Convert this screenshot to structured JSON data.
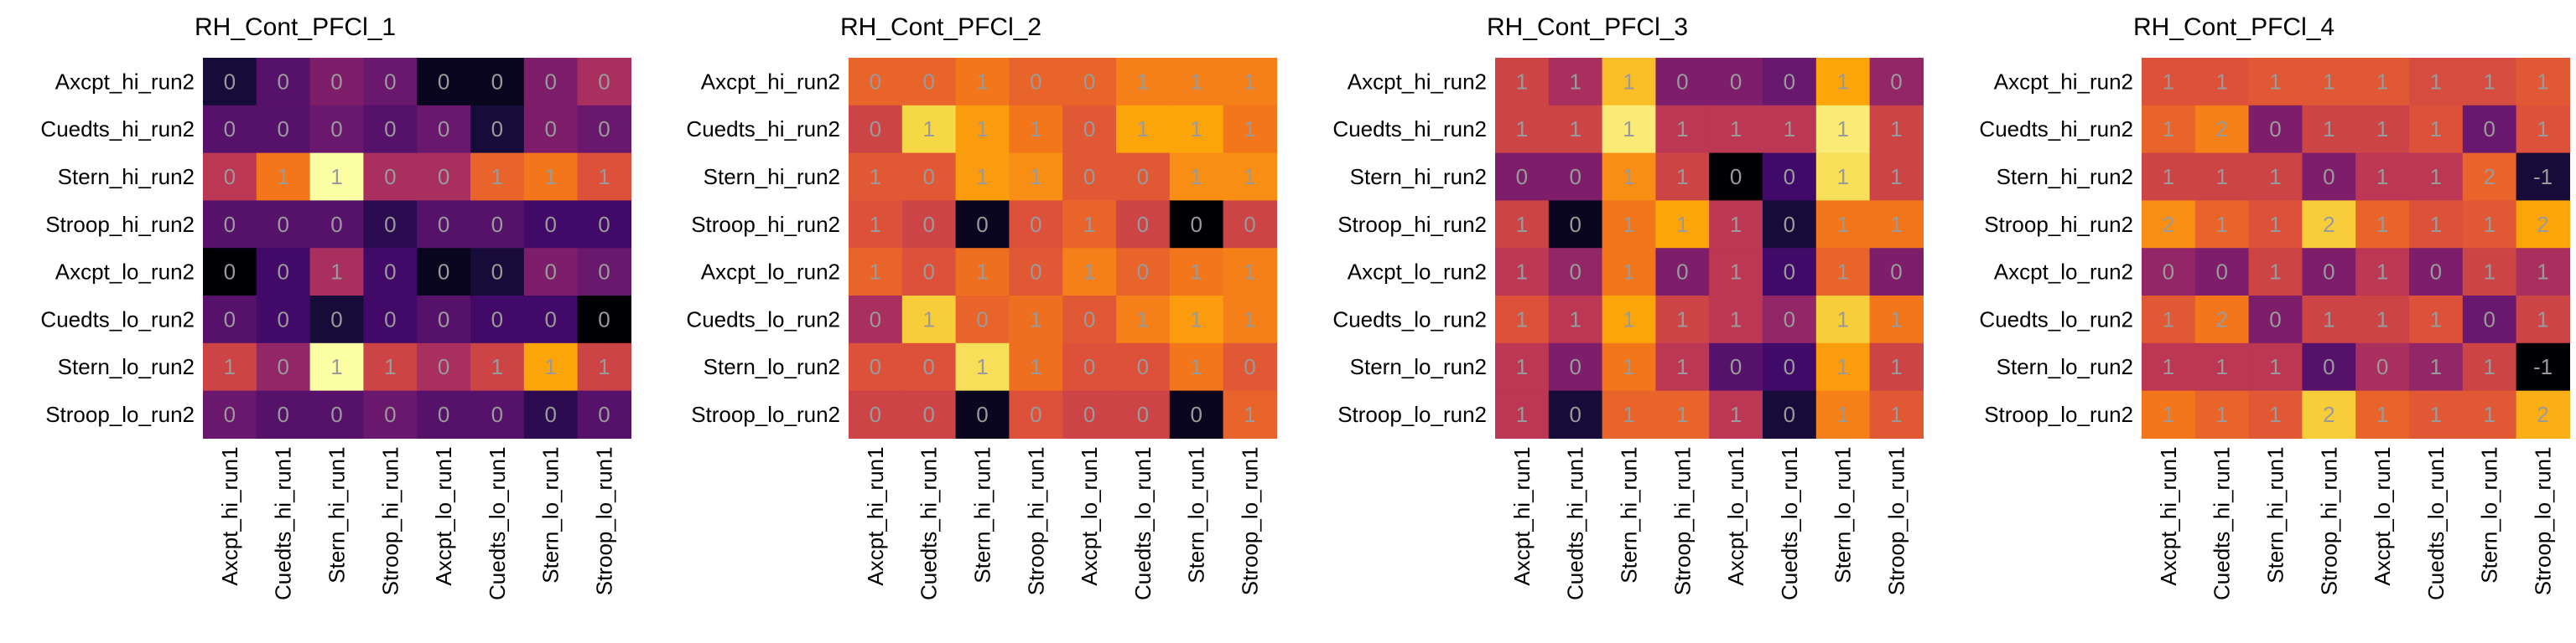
{
  "chart_data": [
    {
      "type": "heatmap",
      "title": "RH_Cont_PFCl_1",
      "rows": [
        "Axcpt_hi_run2",
        "Cuedts_hi_run2",
        "Stern_hi_run2",
        "Stroop_hi_run2",
        "Axcpt_lo_run2",
        "Cuedts_lo_run2",
        "Stern_lo_run2",
        "Stroop_lo_run2"
      ],
      "cols": [
        "Axcpt_hi_run1",
        "Cuedts_hi_run1",
        "Stern_hi_run1",
        "Stroop_hi_run1",
        "Axcpt_lo_run1",
        "Cuedts_lo_run1",
        "Stern_lo_run1",
        "Stroop_lo_run1"
      ],
      "values": [
        [
          0.1,
          0.25,
          0.35,
          0.3,
          0.05,
          0.05,
          0.35,
          0.45
        ],
        [
          0.25,
          0.25,
          0.3,
          0.25,
          0.3,
          0.1,
          0.35,
          0.3
        ],
        [
          0.5,
          0.7,
          1.0,
          0.45,
          0.45,
          0.65,
          0.7,
          0.6
        ],
        [
          0.25,
          0.25,
          0.25,
          0.15,
          0.25,
          0.25,
          0.2,
          0.2
        ],
        [
          0.0,
          0.2,
          0.45,
          0.2,
          0.05,
          0.1,
          0.35,
          0.3
        ],
        [
          0.25,
          0.2,
          0.1,
          0.2,
          0.25,
          0.2,
          0.2,
          0.0
        ],
        [
          0.55,
          0.4,
          1.0,
          0.55,
          0.45,
          0.55,
          0.8,
          0.55
        ],
        [
          0.3,
          0.25,
          0.25,
          0.3,
          0.25,
          0.25,
          0.15,
          0.25
        ]
      ],
      "labels": [
        [
          "0",
          "0",
          "0",
          "0",
          "0",
          "0",
          "0",
          "0"
        ],
        [
          "0",
          "0",
          "0",
          "0",
          "0",
          "0",
          "0",
          "0"
        ],
        [
          "0",
          "1",
          "1",
          "0",
          "0",
          "1",
          "1",
          "1"
        ],
        [
          "0",
          "0",
          "0",
          "0",
          "0",
          "0",
          "0",
          "0"
        ],
        [
          "0",
          "0",
          "1",
          "0",
          "0",
          "0",
          "0",
          "0"
        ],
        [
          "0",
          "0",
          "0",
          "0",
          "0",
          "0",
          "0",
          "0"
        ],
        [
          "1",
          "0",
          "1",
          "1",
          "0",
          "1",
          "1",
          "1"
        ],
        [
          "0",
          "0",
          "0",
          "0",
          "0",
          "0",
          "0",
          "0"
        ]
      ]
    },
    {
      "type": "heatmap",
      "title": "RH_Cont_PFCl_2",
      "rows": [
        "Axcpt_hi_run2",
        "Cuedts_hi_run2",
        "Stern_hi_run2",
        "Stroop_hi_run2",
        "Axcpt_lo_run2",
        "Cuedts_lo_run2",
        "Stern_lo_run2",
        "Stroop_lo_run2"
      ],
      "cols": [
        "Axcpt_hi_run1",
        "Cuedts_hi_run1",
        "Stern_hi_run1",
        "Stroop_hi_run1",
        "Axcpt_lo_run1",
        "Cuedts_lo_run1",
        "Stern_lo_run1",
        "Stroop_lo_run1"
      ],
      "values": [
        [
          0.65,
          0.65,
          0.7,
          0.65,
          0.65,
          0.72,
          0.72,
          0.72
        ],
        [
          0.55,
          0.9,
          0.78,
          0.7,
          0.62,
          0.8,
          0.8,
          0.7
        ],
        [
          0.62,
          0.62,
          0.78,
          0.75,
          0.62,
          0.62,
          0.75,
          0.75
        ],
        [
          0.6,
          0.55,
          0.05,
          0.6,
          0.65,
          0.55,
          0.0,
          0.55
        ],
        [
          0.65,
          0.6,
          0.68,
          0.62,
          0.72,
          0.65,
          0.7,
          0.72
        ],
        [
          0.45,
          0.88,
          0.65,
          0.68,
          0.62,
          0.72,
          0.78,
          0.72
        ],
        [
          0.6,
          0.6,
          0.92,
          0.68,
          0.6,
          0.6,
          0.7,
          0.62
        ],
        [
          0.55,
          0.55,
          0.05,
          0.6,
          0.55,
          0.55,
          0.05,
          0.65
        ]
      ],
      "labels": [
        [
          "0",
          "0",
          "1",
          "0",
          "0",
          "1",
          "1",
          "1"
        ],
        [
          "0",
          "1",
          "1",
          "1",
          "0",
          "1",
          "1",
          "1"
        ],
        [
          "1",
          "0",
          "1",
          "1",
          "0",
          "0",
          "1",
          "1"
        ],
        [
          "1",
          "0",
          "0",
          "0",
          "1",
          "0",
          "0",
          "0"
        ],
        [
          "1",
          "0",
          "1",
          "0",
          "1",
          "0",
          "1",
          "1"
        ],
        [
          "0",
          "1",
          "0",
          "1",
          "0",
          "1",
          "1",
          "1"
        ],
        [
          "0",
          "0",
          "1",
          "1",
          "0",
          "0",
          "1",
          "0"
        ],
        [
          "0",
          "0",
          "0",
          "0",
          "0",
          "0",
          "0",
          "1"
        ]
      ]
    },
    {
      "type": "heatmap",
      "title": "RH_Cont_PFCl_3",
      "rows": [
        "Axcpt_hi_run2",
        "Cuedts_hi_run2",
        "Stern_hi_run2",
        "Stroop_hi_run2",
        "Axcpt_lo_run2",
        "Cuedts_lo_run2",
        "Stern_lo_run2",
        "Stroop_lo_run2"
      ],
      "cols": [
        "Axcpt_hi_run1",
        "Cuedts_hi_run1",
        "Stern_hi_run1",
        "Stroop_hi_run1",
        "Axcpt_lo_run1",
        "Cuedts_lo_run1",
        "Stern_lo_run1",
        "Stroop_lo_run1"
      ],
      "values": [
        [
          0.55,
          0.45,
          0.85,
          0.35,
          0.35,
          0.3,
          0.8,
          0.4
        ],
        [
          0.55,
          0.55,
          0.95,
          0.5,
          0.5,
          0.5,
          0.95,
          0.55
        ],
        [
          0.35,
          0.35,
          0.75,
          0.55,
          0.0,
          0.2,
          0.92,
          0.55
        ],
        [
          0.55,
          0.05,
          0.7,
          0.8,
          0.5,
          0.1,
          0.7,
          0.7
        ],
        [
          0.5,
          0.4,
          0.7,
          0.35,
          0.5,
          0.2,
          0.65,
          0.35
        ],
        [
          0.6,
          0.5,
          0.8,
          0.55,
          0.5,
          0.4,
          0.88,
          0.7
        ],
        [
          0.5,
          0.35,
          0.7,
          0.5,
          0.25,
          0.2,
          0.78,
          0.55
        ],
        [
          0.5,
          0.1,
          0.65,
          0.65,
          0.5,
          0.1,
          0.72,
          0.62
        ]
      ],
      "labels": [
        [
          "1",
          "1",
          "1",
          "0",
          "0",
          "0",
          "1",
          "0"
        ],
        [
          "1",
          "1",
          "1",
          "1",
          "1",
          "1",
          "1",
          "1"
        ],
        [
          "0",
          "0",
          "1",
          "1",
          "0",
          "0",
          "1",
          "1"
        ],
        [
          "1",
          "0",
          "1",
          "1",
          "1",
          "0",
          "1",
          "1"
        ],
        [
          "1",
          "0",
          "1",
          "0",
          "1",
          "0",
          "1",
          "0"
        ],
        [
          "1",
          "1",
          "1",
          "1",
          "1",
          "0",
          "1",
          "1"
        ],
        [
          "1",
          "0",
          "1",
          "1",
          "0",
          "0",
          "1",
          "1"
        ],
        [
          "1",
          "0",
          "1",
          "1",
          "1",
          "0",
          "1",
          "1"
        ]
      ]
    },
    {
      "type": "heatmap",
      "title": "RH_Cont_PFCl_4",
      "rows": [
        "Axcpt_hi_run2",
        "Cuedts_hi_run2",
        "Stern_hi_run2",
        "Stroop_hi_run2",
        "Axcpt_lo_run2",
        "Cuedts_lo_run2",
        "Stern_lo_run2",
        "Stroop_lo_run2"
      ],
      "cols": [
        "Axcpt_hi_run1",
        "Cuedts_hi_run1",
        "Stern_hi_run1",
        "Stroop_hi_run1",
        "Axcpt_lo_run1",
        "Cuedts_lo_run1",
        "Stern_lo_run1",
        "Stroop_lo_run1"
      ],
      "values": [
        [
          0.6,
          0.6,
          0.62,
          0.62,
          0.62,
          0.58,
          0.58,
          0.62
        ],
        [
          0.65,
          0.72,
          0.35,
          0.55,
          0.55,
          0.6,
          0.3,
          0.6
        ],
        [
          0.55,
          0.55,
          0.55,
          0.35,
          0.5,
          0.5,
          0.65,
          0.1
        ],
        [
          0.75,
          0.65,
          0.6,
          0.88,
          0.65,
          0.6,
          0.62,
          0.8
        ],
        [
          0.4,
          0.35,
          0.55,
          0.35,
          0.5,
          0.35,
          0.55,
          0.45
        ],
        [
          0.62,
          0.7,
          0.35,
          0.55,
          0.55,
          0.6,
          0.3,
          0.55
        ],
        [
          0.5,
          0.5,
          0.5,
          0.25,
          0.45,
          0.4,
          0.55,
          0.0
        ],
        [
          0.7,
          0.65,
          0.62,
          0.88,
          0.65,
          0.62,
          0.62,
          0.82
        ]
      ],
      "labels": [
        [
          "1",
          "1",
          "1",
          "1",
          "1",
          "1",
          "1",
          "1"
        ],
        [
          "1",
          "2",
          "0",
          "1",
          "1",
          "1",
          "0",
          "1"
        ],
        [
          "1",
          "1",
          "1",
          "0",
          "1",
          "1",
          "2",
          "-1"
        ],
        [
          "2",
          "1",
          "1",
          "2",
          "1",
          "1",
          "1",
          "2"
        ],
        [
          "0",
          "0",
          "1",
          "0",
          "1",
          "0",
          "1",
          "1"
        ],
        [
          "1",
          "2",
          "0",
          "1",
          "1",
          "1",
          "0",
          "1"
        ],
        [
          "1",
          "1",
          "1",
          "0",
          "0",
          "1",
          "1",
          "-1"
        ],
        [
          "1",
          "1",
          "1",
          "2",
          "1",
          "1",
          "1",
          "2"
        ]
      ]
    }
  ]
}
